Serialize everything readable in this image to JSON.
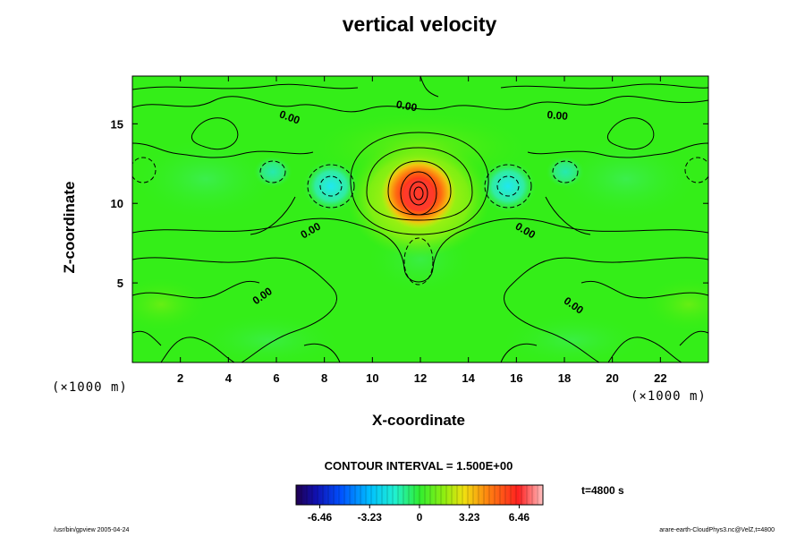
{
  "chart_data": {
    "type": "heatmap",
    "title": "vertical velocity",
    "xlabel": "X-coordinate",
    "ylabel": "Z-coordinate",
    "x_unit": "(×1000 m)",
    "z_unit": "(×1000 m)",
    "xlim": [
      0,
      24
    ],
    "ylim": [
      0,
      18
    ],
    "x_ticks": [
      2,
      4,
      6,
      8,
      10,
      12,
      14,
      16,
      18,
      20,
      22
    ],
    "y_ticks": [
      5,
      10,
      15
    ],
    "contour_interval_text": "CONTOUR INTERVAL = 1.500E+00",
    "contour_labels": [
      {
        "text": "0.00",
        "x": 6.5,
        "z": 15.2
      },
      {
        "text": "0.00",
        "x": 11.4,
        "z": 15.9
      },
      {
        "text": "0.00",
        "x": 17.7,
        "z": 15.3
      },
      {
        "text": "0.00",
        "x": 7.5,
        "z": 8.1
      },
      {
        "text": "0.00",
        "x": 16.3,
        "z": 8.1
      },
      {
        "text": "0.00",
        "x": 5.5,
        "z": 4.0
      },
      {
        "text": "0.00",
        "x": 18.3,
        "z": 3.4
      }
    ],
    "colorbar": {
      "range": [
        -8.0,
        8.0
      ],
      "tick_values": [
        -6.46,
        -3.23,
        0,
        3.23,
        6.46
      ],
      "tick_labels": [
        "-6.46",
        "-3.23",
        "0",
        "3.23",
        "6.46"
      ]
    },
    "time_label": "t=4800 s"
  },
  "footer": {
    "left": "/usr/bin/gpview 2005-04-24",
    "right": "arare-earth-CloudPhys3.nc@VelZ,t=4800"
  },
  "colors": {
    "background_field": "#33ee11",
    "updraft_core": "#ff3020",
    "downdraft": "#22eedd"
  }
}
